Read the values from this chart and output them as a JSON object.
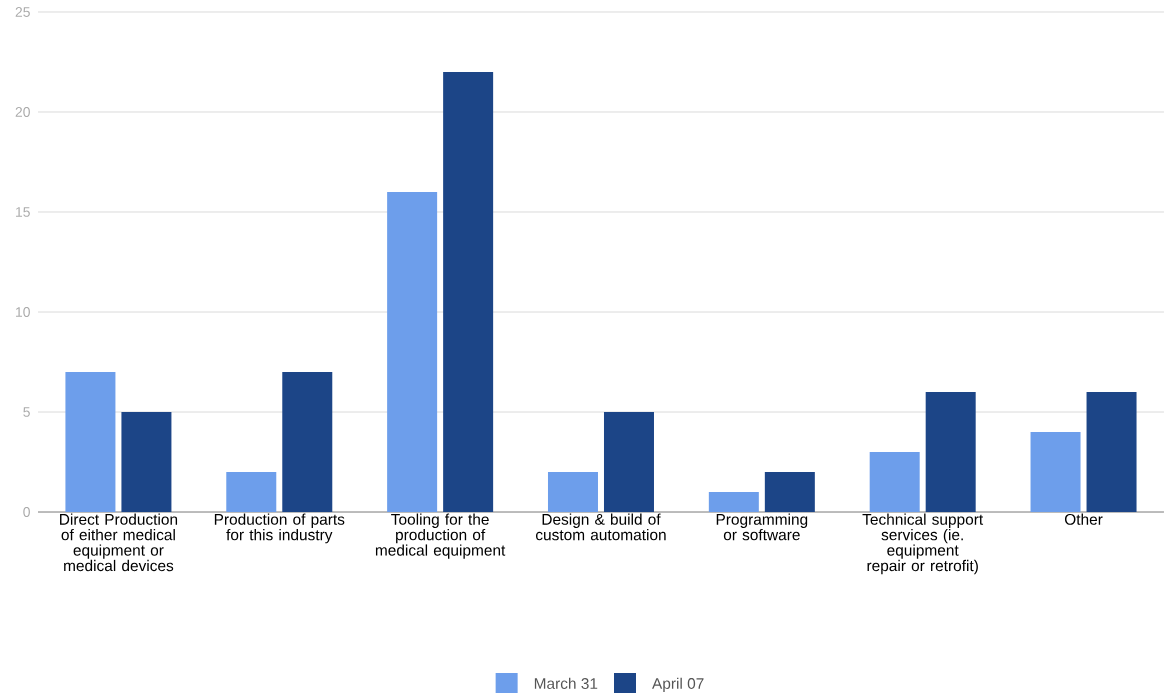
{
  "chart_data": {
    "type": "bar",
    "categories": [
      "Direct Production of either medical equipment or medical devices",
      "Production of parts for this industry",
      "Tooling for the production of medical equipment",
      "Design & build of custom automation",
      "Programming or software",
      "Technical support services (ie. equipment repair or retrofit)",
      "Other"
    ],
    "series": [
      {
        "name": "March 31",
        "color": "#6d9eeb",
        "values": [
          7,
          2,
          16,
          2,
          1,
          3,
          4
        ]
      },
      {
        "name": "April 07",
        "color": "#1c4587",
        "values": [
          5,
          7,
          22,
          5,
          2,
          6,
          6
        ]
      }
    ],
    "ylim": [
      0,
      25
    ],
    "yticks": [
      0,
      5,
      10,
      15,
      20,
      25
    ],
    "grid": "y",
    "legend": "bottom"
  }
}
